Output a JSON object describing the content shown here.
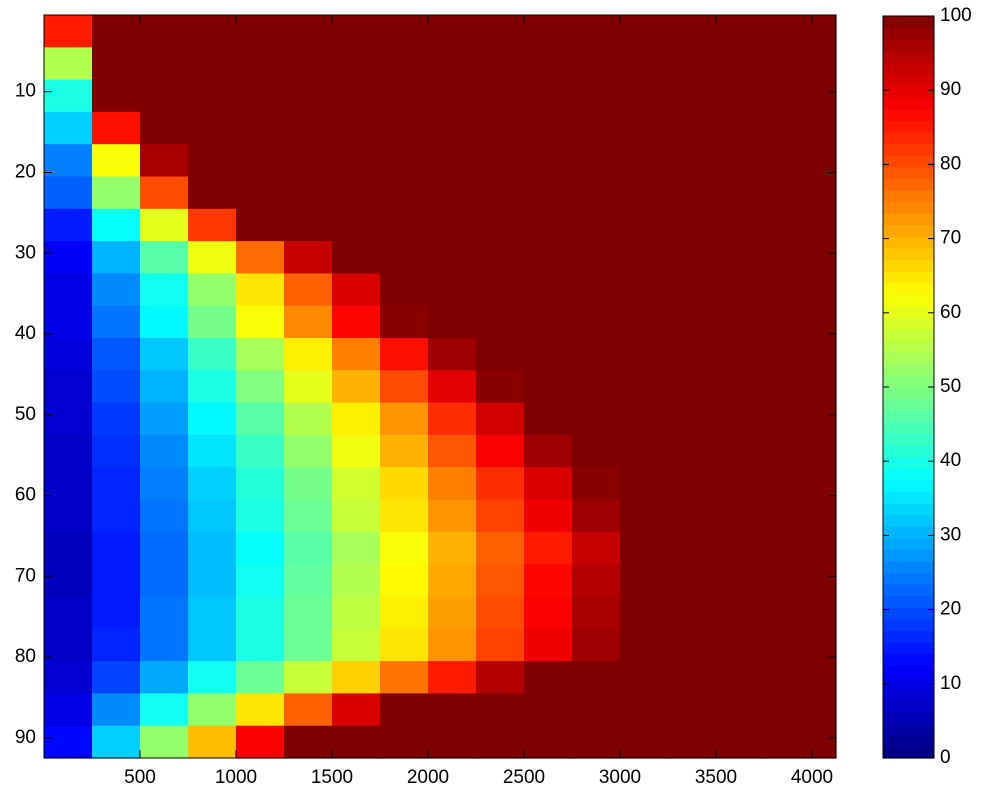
{
  "chart_data": {
    "type": "heatmap",
    "colormap": "jet",
    "x_bins": [
      0,
      250,
      500,
      750,
      1000,
      1250,
      1500,
      1750,
      2000,
      2250,
      2500,
      2750,
      3000,
      3250,
      3500,
      3750,
      4000,
      4125
    ],
    "y_bins": [
      0.5,
      4.5,
      8.5,
      12.5,
      16.5,
      20.5,
      24.5,
      28.5,
      32.5,
      36.5,
      40.5,
      44.5,
      48.5,
      52.5,
      56.5,
      60.5,
      64.5,
      68.5,
      72.5,
      76.5,
      80.5,
      84.5,
      88.5,
      92.5
    ],
    "z": [
      [
        85,
        100,
        100,
        100,
        100,
        100,
        100,
        100,
        100,
        100,
        100,
        100,
        100,
        100,
        100,
        100,
        100
      ],
      [
        55,
        100,
        100,
        100,
        100,
        100,
        100,
        100,
        100,
        100,
        100,
        100,
        100,
        100,
        100,
        100,
        100
      ],
      [
        40,
        100,
        100,
        100,
        100,
        100,
        100,
        100,
        100,
        100,
        100,
        100,
        100,
        100,
        100,
        100,
        100
      ],
      [
        33,
        86,
        100,
        100,
        100,
        100,
        100,
        100,
        100,
        100,
        100,
        100,
        100,
        100,
        100,
        100,
        100
      ],
      [
        25,
        62,
        96,
        100,
        100,
        100,
        100,
        100,
        100,
        100,
        100,
        100,
        100,
        100,
        100,
        100,
        100
      ],
      [
        22,
        52,
        80,
        100,
        100,
        100,
        100,
        100,
        100,
        100,
        100,
        100,
        100,
        100,
        100,
        100,
        100
      ],
      [
        15,
        38,
        60,
        82,
        100,
        100,
        100,
        100,
        100,
        100,
        100,
        100,
        100,
        100,
        100,
        100,
        100
      ],
      [
        12,
        30,
        46,
        61,
        77,
        93,
        100,
        100,
        100,
        100,
        100,
        100,
        100,
        100,
        100,
        100,
        100
      ],
      [
        10,
        26,
        39,
        52,
        65,
        78,
        91,
        100,
        100,
        100,
        100,
        100,
        100,
        100,
        100,
        100,
        100
      ],
      [
        10,
        24,
        37,
        49,
        62,
        74,
        87,
        99,
        100,
        100,
        100,
        100,
        100,
        100,
        100,
        100,
        100
      ],
      [
        9,
        21,
        32,
        43,
        54,
        64,
        75,
        86,
        97,
        100,
        100,
        100,
        100,
        100,
        100,
        100,
        100
      ],
      [
        8,
        20,
        30,
        40,
        50,
        60,
        70,
        80,
        90,
        99,
        100,
        100,
        100,
        100,
        100,
        100,
        100
      ],
      [
        8,
        18,
        28,
        37,
        46,
        55,
        64,
        73,
        83,
        92,
        100,
        100,
        100,
        100,
        100,
        100,
        100
      ],
      [
        7,
        17,
        26,
        35,
        43,
        52,
        61,
        70,
        79,
        88,
        97,
        100,
        100,
        100,
        100,
        100,
        100
      ],
      [
        7,
        16,
        25,
        33,
        41,
        49,
        58,
        66,
        75,
        83,
        91,
        99,
        100,
        100,
        100,
        100,
        100
      ],
      [
        7,
        16,
        24,
        32,
        40,
        48,
        57,
        65,
        73,
        81,
        89,
        97,
        100,
        100,
        100,
        100,
        100
      ],
      [
        6,
        15,
        23,
        31,
        38,
        46,
        54,
        62,
        70,
        78,
        85,
        93,
        100,
        100,
        100,
        100,
        100
      ],
      [
        6,
        15,
        23,
        31,
        39,
        47,
        55,
        63,
        71,
        79,
        87,
        95,
        100,
        100,
        100,
        100,
        100
      ],
      [
        7,
        15,
        24,
        32,
        40,
        48,
        56,
        64,
        72,
        80,
        88,
        96,
        100,
        100,
        100,
        100,
        100
      ],
      [
        7,
        16,
        24,
        32,
        40,
        48,
        57,
        65,
        73,
        81,
        89,
        97,
        100,
        100,
        100,
        100,
        100
      ],
      [
        8,
        19,
        29,
        39,
        48,
        57,
        67,
        76,
        85,
        95,
        100,
        100,
        100,
        100,
        100,
        100,
        100
      ],
      [
        10,
        26,
        39,
        52,
        65,
        78,
        91,
        100,
        100,
        100,
        100,
        100,
        100,
        100,
        100,
        100,
        100
      ],
      [
        13,
        33,
        52,
        69,
        88,
        100,
        100,
        100,
        100,
        100,
        100,
        100,
        100,
        100,
        100,
        100,
        100
      ]
    ],
    "xlim": [
      0,
      4125
    ],
    "xticks": [
      500,
      1000,
      1500,
      2000,
      2500,
      3000,
      3500,
      4000
    ],
    "ylim": [
      0.5,
      92.5
    ],
    "yticks": [
      10,
      20,
      30,
      40,
      50,
      60,
      70,
      80,
      90
    ],
    "clim": [
      0,
      100
    ],
    "cticks": [
      0,
      10,
      20,
      30,
      40,
      50,
      60,
      70,
      80,
      90,
      100
    ]
  }
}
